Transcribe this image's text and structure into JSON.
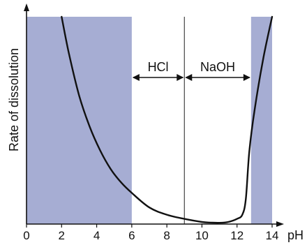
{
  "chart_data": {
    "type": "line",
    "title": "",
    "xlabel": "pH",
    "ylabel": "Rate of dissolution",
    "xlim": [
      0,
      14
    ],
    "x_ticks": [
      "0",
      "2",
      "4",
      "6",
      "8",
      "10",
      "12",
      "14"
    ],
    "y_ticks": [],
    "grid": false,
    "series": [
      {
        "x": [
          2.0,
          2.4,
          3.0,
          3.6,
          4.2,
          4.8,
          5.4,
          6.0,
          7.0,
          8.0,
          9.0,
          10.0,
          10.5,
          11.0,
          11.5,
          12.0,
          12.3,
          12.5,
          12.7,
          13.0,
          13.5,
          14.0
        ],
        "y": [
          1.0,
          0.83,
          0.62,
          0.47,
          0.355,
          0.265,
          0.2,
          0.15,
          0.08,
          0.045,
          0.025,
          0.01,
          0.007,
          0.006,
          0.01,
          0.025,
          0.045,
          0.12,
          0.35,
          0.55,
          0.8,
          1.0
        ]
      }
    ],
    "shaded_regions": [
      {
        "x_range": [
          0,
          6
        ],
        "color": "#a6add3"
      },
      {
        "x_range": [
          12.8,
          14
        ],
        "color": "#a6add3"
      }
    ],
    "vertical_line": {
      "x": 9
    },
    "annotations": [
      {
        "text": "HCl",
        "x_range": [
          6,
          9
        ]
      },
      {
        "text": "NaOH",
        "x_range": [
          9,
          12.8
        ]
      }
    ]
  }
}
